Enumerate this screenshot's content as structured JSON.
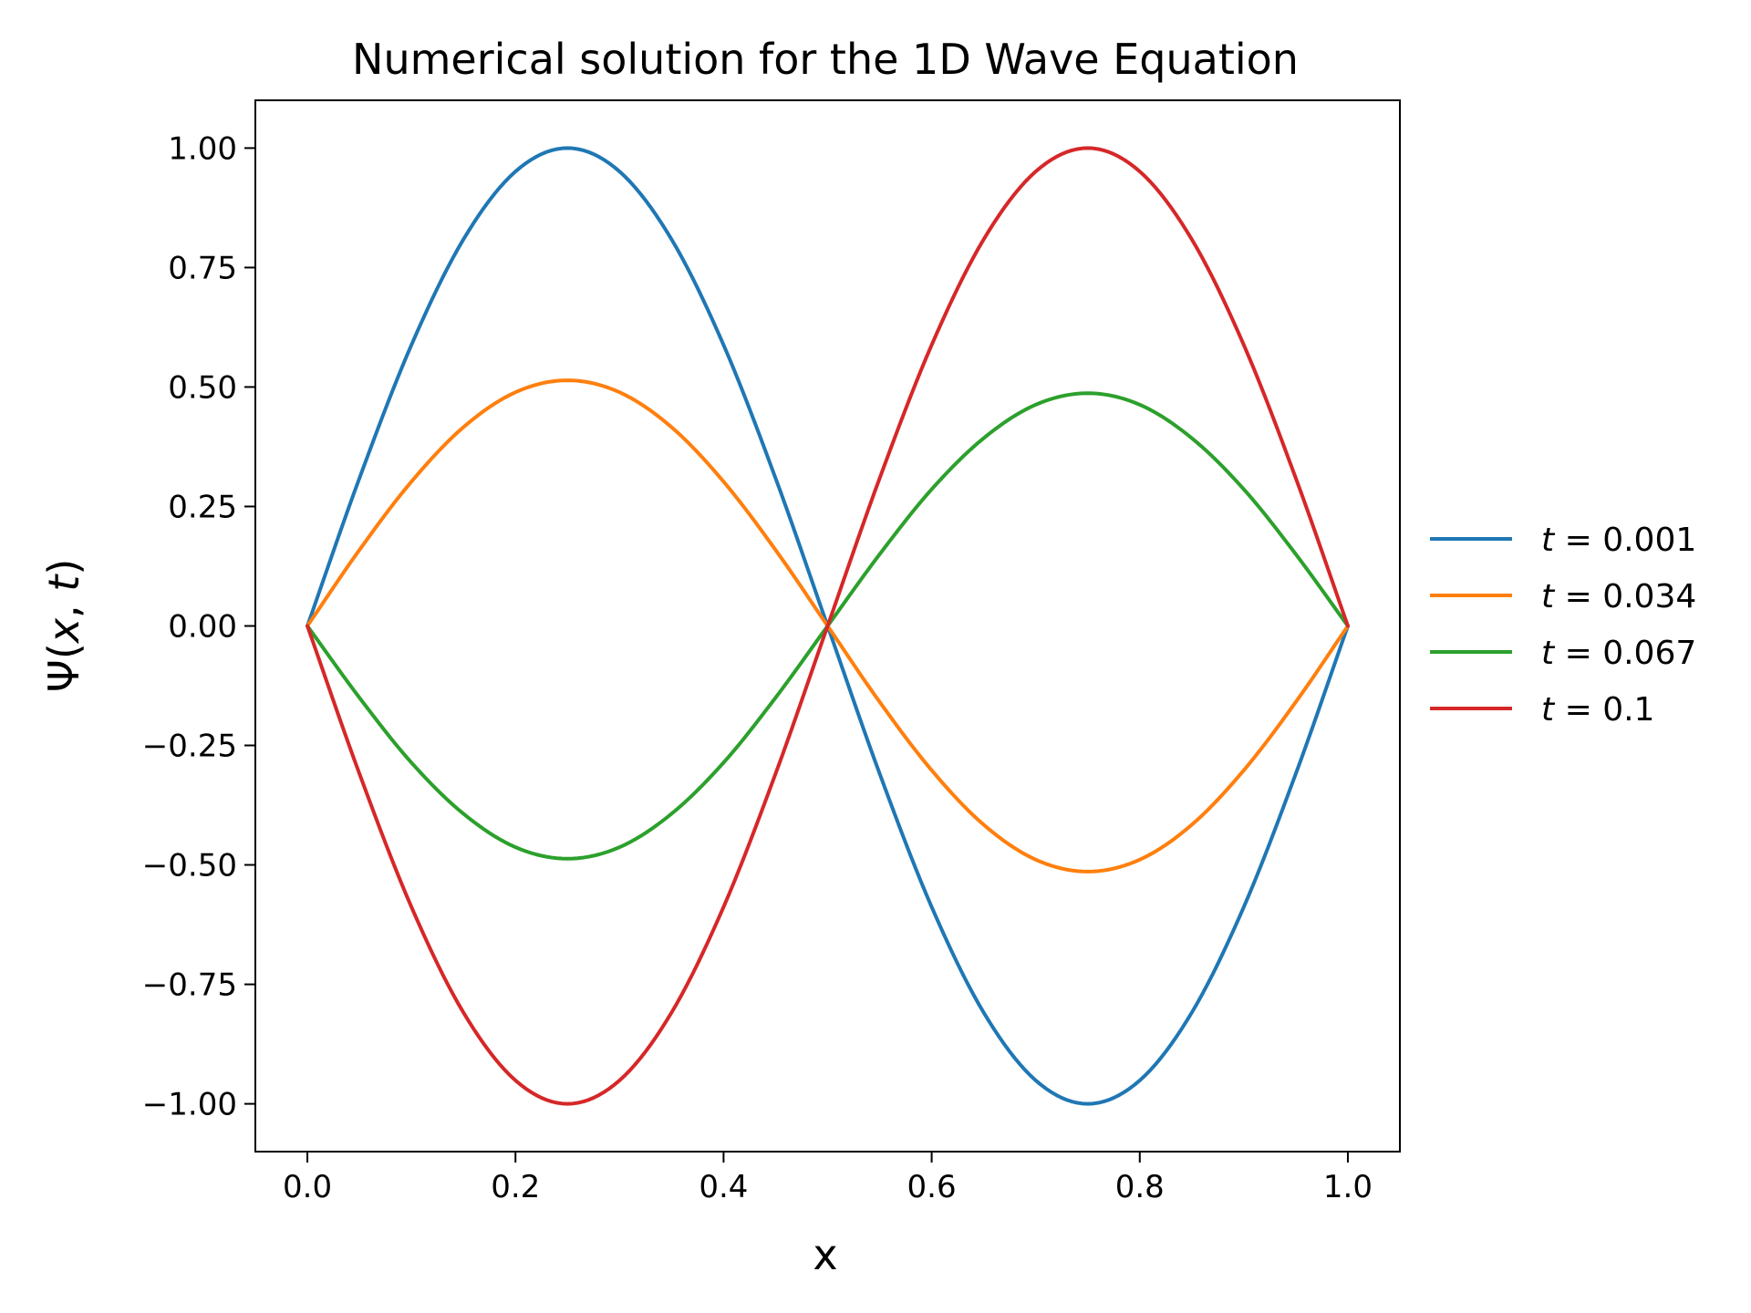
{
  "chart_data": {
    "type": "line",
    "title": "Numerical solution for the 1D Wave Equation",
    "xlabel": "x",
    "ylabel": {
      "prefix": "Ψ(",
      "v1": "x",
      "sep": ", ",
      "v2": "t",
      "suffix": ")"
    },
    "xlim": [
      -0.05,
      1.05
    ],
    "ylim": [
      -1.1,
      1.1
    ],
    "x_ticks": [
      0.0,
      0.2,
      0.4,
      0.6,
      0.8,
      1.0
    ],
    "x_tick_labels": [
      "0.0",
      "0.2",
      "0.4",
      "0.6",
      "0.8",
      "1.0"
    ],
    "y_ticks": [
      1.0,
      0.75,
      0.5,
      0.25,
      0.0,
      -0.25,
      -0.5,
      -0.75,
      -1.0
    ],
    "y_tick_labels": [
      "1.00",
      "0.75",
      "0.50",
      "0.25",
      "0.00",
      "−0.25",
      "−0.50",
      "−0.75",
      "−1.00"
    ],
    "grid": false,
    "legend_position": "right-outside",
    "x": [
      0.0,
      0.05,
      0.1,
      0.15,
      0.2,
      0.25,
      0.3,
      0.35,
      0.4,
      0.45,
      0.5,
      0.55,
      0.6,
      0.65,
      0.7,
      0.75,
      0.8,
      0.85,
      0.9,
      0.95,
      1.0
    ],
    "series": [
      {
        "name": "t = 0.001",
        "label": {
          "var": "t",
          "eq": " = ",
          "val": "0.001"
        },
        "color": "#1f77b4",
        "values": [
          0.0,
          0.309,
          0.588,
          0.809,
          0.951,
          1.0,
          0.951,
          0.809,
          0.588,
          0.309,
          0.0,
          -0.309,
          -0.588,
          -0.809,
          -0.951,
          -1.0,
          -0.951,
          -0.809,
          -0.588,
          -0.309,
          0.0
        ]
      },
      {
        "name": "t = 0.034",
        "label": {
          "var": "t",
          "eq": " = ",
          "val": "0.034"
        },
        "color": "#ff7f0e",
        "values": [
          0.0,
          0.159,
          0.302,
          0.416,
          0.489,
          0.514,
          0.489,
          0.416,
          0.302,
          0.159,
          0.0,
          -0.159,
          -0.302,
          -0.416,
          -0.489,
          -0.514,
          -0.489,
          -0.416,
          -0.302,
          -0.159,
          0.0
        ]
      },
      {
        "name": "t = 0.067",
        "label": {
          "var": "t",
          "eq": " = ",
          "val": "0.067"
        },
        "color": "#2ca02c",
        "values": [
          0.0,
          -0.15,
          -0.286,
          -0.393,
          -0.463,
          -0.487,
          -0.463,
          -0.393,
          -0.286,
          -0.15,
          0.0,
          0.15,
          0.286,
          0.393,
          0.463,
          0.487,
          0.463,
          0.393,
          0.286,
          0.15,
          0.0
        ]
      },
      {
        "name": "t = 0.1",
        "label": {
          "var": "t",
          "eq": " = ",
          "val": "0.1"
        },
        "color": "#d62728",
        "values": [
          0.0,
          -0.309,
          -0.588,
          -0.809,
          -0.951,
          -1.0,
          -0.951,
          -0.809,
          -0.588,
          -0.309,
          0.0,
          0.309,
          0.588,
          0.809,
          0.951,
          1.0,
          0.951,
          0.809,
          0.588,
          0.309,
          0.0
        ]
      }
    ]
  }
}
